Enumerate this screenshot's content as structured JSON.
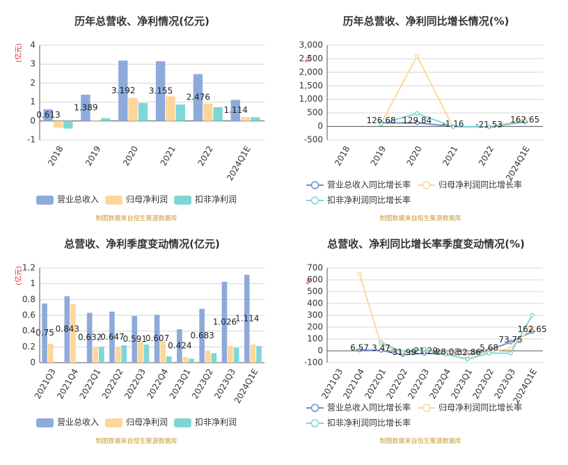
{
  "chart_data": [
    {
      "type": "bar",
      "title": "历年总营收、净利情况(亿元)",
      "unit_label": "(亿元)",
      "source": "制图数据来自恒生聚源数据库",
      "categories": [
        "2018",
        "2019",
        "2020",
        "2021",
        "2022",
        "2024Q1E"
      ],
      "ylim": [
        -1,
        4
      ],
      "yticks": [
        -1,
        0,
        1,
        2,
        3,
        4
      ],
      "grid": true,
      "series": [
        {
          "name": "营业总收入",
          "color": "#8eaadb",
          "show_labels": true,
          "values": [
            0.613,
            1.389,
            3.192,
            3.155,
            2.476,
            1.114
          ]
        },
        {
          "name": "归母净利润",
          "color": "#ffd699",
          "values": [
            -0.35,
            0.02,
            1.22,
            1.3,
            0.92,
            0.2
          ]
        },
        {
          "name": "扣非净利润",
          "color": "#7fd6d6",
          "values": [
            -0.4,
            0.15,
            0.95,
            0.87,
            0.73,
            0.2
          ]
        }
      ]
    },
    {
      "type": "line",
      "title": "历年总营收、净利同比增长情况(%)",
      "unit_label": "%",
      "source": "制图数据来自恒生聚源数据库",
      "categories": [
        "2018",
        "2019",
        "2020",
        "2021",
        "2022",
        "2024Q1E"
      ],
      "ylim": [
        -500,
        3000
      ],
      "yticks": [
        -500,
        0,
        500,
        {
          "value": 1000,
          "label": "1,000"
        },
        {
          "value": 1500,
          "label": "1,500"
        },
        {
          "value": 2000,
          "label": "2,000"
        },
        {
          "value": 2500,
          "label": "2,500"
        },
        {
          "value": 3000,
          "label": "3,000"
        }
      ],
      "grid": true,
      "series": [
        {
          "name": "营业总收入同比增长率",
          "color": "#6f8fd0",
          "show_labels": true,
          "values": [
            null,
            126.68,
            129.84,
            -1.16,
            -21.53,
            162.65
          ]
        },
        {
          "name": "归母净利润同比增长率",
          "color": "#ffd699",
          "values": [
            null,
            105,
            2600,
            -20,
            -30,
            260
          ]
        },
        {
          "name": "扣非净利润同比增长率",
          "color": "#7fd6d6",
          "values": [
            null,
            100,
            480,
            -10,
            -15,
            180
          ]
        }
      ]
    },
    {
      "type": "bar",
      "title": "总营收、净利季度变动情况(亿元)",
      "unit_label": "(亿元)",
      "source": "制图数据来自恒生聚源数据库",
      "categories": [
        "2021Q3",
        "2021Q4",
        "2022Q1",
        "2022Q2",
        "2022Q3",
        "2022Q4",
        "2023Q1",
        "2023Q2",
        "2023Q3",
        "2024Q1E"
      ],
      "ylim": [
        0,
        1.2
      ],
      "yticks": [
        0,
        0.2,
        0.4,
        0.6,
        0.8,
        1,
        1.2
      ],
      "grid": true,
      "series": [
        {
          "name": "营业总收入",
          "color": "#8eaadb",
          "show_labels": true,
          "values": [
            0.75,
            0.843,
            0.632,
            0.647,
            0.591,
            0.607,
            0.424,
            0.683,
            1.026,
            1.114
          ]
        },
        {
          "name": "归母净利润",
          "color": "#ffd699",
          "values": [
            0.24,
            0.74,
            0.2,
            0.2,
            0.27,
            0.27,
            0.07,
            0.15,
            0.21,
            0.23
          ]
        },
        {
          "name": "扣非净利润",
          "color": "#7fd6d6",
          "values": [
            null,
            null,
            0.2,
            0.22,
            0.23,
            0.08,
            0.05,
            0.12,
            0.19,
            0.21
          ]
        }
      ]
    },
    {
      "type": "line",
      "title": "总营收、净利同比增长率季度变动情况(%)",
      "unit_label": "%",
      "source": "制图数据来自恒生聚源数据库",
      "categories": [
        "2021Q3",
        "2021Q4",
        "2022Q1",
        "2022Q2",
        "2022Q3",
        "2022Q4",
        "2023Q1",
        "2023Q2",
        "2023Q3",
        "2024Q1E"
      ],
      "ylim": [
        -100,
        700
      ],
      "yticks": [
        -100,
        0,
        100,
        200,
        300,
        400,
        500,
        600,
        700
      ],
      "grid": true,
      "series": [
        {
          "name": "营业总收入同比增长率",
          "color": "#6f8fd0",
          "show_labels": true,
          "values": [
            null,
            6.57,
            3.47,
            -31.99,
            -21.29,
            -28.03,
            -32.86,
            5.68,
            73.75,
            162.65
          ]
        },
        {
          "name": "归母净利润同比增长率",
          "color": "#ffd699",
          "values": [
            null,
            650,
            50,
            -20,
            10,
            -20,
            -40,
            -10,
            20,
            200
          ]
        },
        {
          "name": "扣非净利润同比增长率",
          "color": "#7fd6d6",
          "values": [
            null,
            null,
            70,
            -10,
            15,
            -30,
            -70,
            -20,
            -20,
            300
          ]
        }
      ]
    }
  ]
}
